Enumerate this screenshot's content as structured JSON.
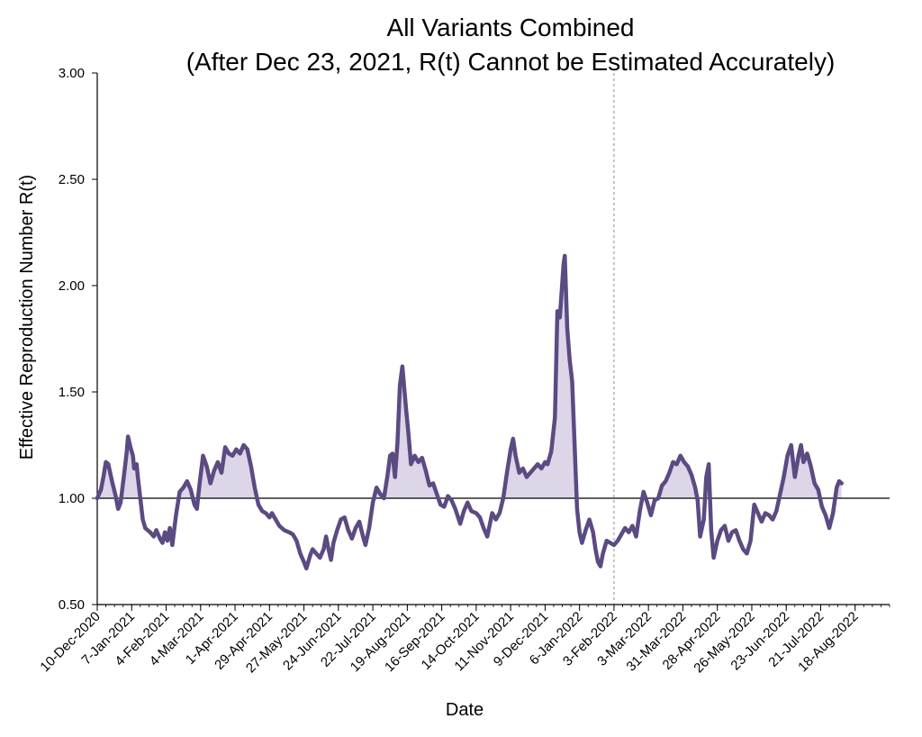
{
  "chart_data": {
    "type": "area",
    "title": "All Variants Combined",
    "subtitle": "(After Dec 23, 2021, R(t) Cannot be Estimated Accurately)",
    "xlabel": "Date",
    "ylabel": "Effective Reproduction Number R(t)",
    "ylim": [
      0.5,
      3.0
    ],
    "y_ticks": [
      "0.50",
      "1.00",
      "1.50",
      "2.00",
      "2.50",
      "3.00"
    ],
    "y_tick_values": [
      0.5,
      1.0,
      1.5,
      2.0,
      2.5,
      3.0
    ],
    "x_ticks": [
      "10-Dec-2020",
      "7-Jan-2021",
      "4-Feb-2021",
      "4-Mar-2021",
      "1-Apr-2021",
      "29-Apr-2021",
      "27-May-2021",
      "24-Jun-2021",
      "22-Jul-2021",
      "19-Aug-2021",
      "16-Sep-2021",
      "14-Oct-2021",
      "11-Nov-2021",
      "9-Dec-2021",
      "6-Jan-2022",
      "3-Feb-2022",
      "3-Mar-2022",
      "31-Mar-2022",
      "28-Apr-2022",
      "26-May-2022",
      "23-Jun-2022",
      "21-Jul-2022",
      "18-Aug-2022"
    ],
    "x_tick_dates": [
      "2020-12-10",
      "2021-01-07",
      "2021-02-04",
      "2021-03-04",
      "2021-04-01",
      "2021-04-29",
      "2021-05-27",
      "2021-06-24",
      "2021-07-22",
      "2021-08-19",
      "2021-09-16",
      "2021-10-14",
      "2021-11-11",
      "2021-12-09",
      "2022-01-06",
      "2022-02-03",
      "2022-03-03",
      "2022-03-31",
      "2022-04-28",
      "2022-05-26",
      "2022-06-23",
      "2022-07-21",
      "2022-08-18"
    ],
    "xlim": [
      "2020-12-10",
      "2022-09-15"
    ],
    "reference_line": 1.0,
    "vertical_marker": "2022-02-03",
    "series": [
      {
        "values": [
          [
            "2020-12-10",
            1.0
          ],
          [
            "2020-12-13",
            1.04
          ],
          [
            "2020-12-15",
            1.1
          ],
          [
            "2020-12-17",
            1.17
          ],
          [
            "2020-12-19",
            1.16
          ],
          [
            "2020-12-22",
            1.08
          ],
          [
            "2020-12-25",
            1.01
          ],
          [
            "2020-12-27",
            0.95
          ],
          [
            "2020-12-29",
            0.98
          ],
          [
            "2021-01-01",
            1.12
          ],
          [
            "2021-01-03",
            1.22
          ],
          [
            "2021-01-04",
            1.29
          ],
          [
            "2021-01-06",
            1.24
          ],
          [
            "2021-01-08",
            1.2
          ],
          [
            "2021-01-09",
            1.14
          ],
          [
            "2021-01-11",
            1.16
          ],
          [
            "2021-01-12",
            1.1
          ],
          [
            "2021-01-14",
            1.0
          ],
          [
            "2021-01-16",
            0.9
          ],
          [
            "2021-01-18",
            0.86
          ],
          [
            "2021-01-20",
            0.85
          ],
          [
            "2021-01-22",
            0.84
          ],
          [
            "2021-01-25",
            0.82
          ],
          [
            "2021-01-27",
            0.85
          ],
          [
            "2021-01-30",
            0.81
          ],
          [
            "2021-02-01",
            0.79
          ],
          [
            "2021-02-03",
            0.84
          ],
          [
            "2021-02-05",
            0.8
          ],
          [
            "2021-02-07",
            0.86
          ],
          [
            "2021-02-09",
            0.78
          ],
          [
            "2021-02-12",
            0.92
          ],
          [
            "2021-02-15",
            1.03
          ],
          [
            "2021-02-18",
            1.05
          ],
          [
            "2021-02-21",
            1.08
          ],
          [
            "2021-02-24",
            1.04
          ],
          [
            "2021-02-27",
            0.97
          ],
          [
            "2021-03-01",
            0.95
          ],
          [
            "2021-03-03",
            1.06
          ],
          [
            "2021-03-06",
            1.2
          ],
          [
            "2021-03-09",
            1.15
          ],
          [
            "2021-03-12",
            1.07
          ],
          [
            "2021-03-15",
            1.13
          ],
          [
            "2021-03-18",
            1.17
          ],
          [
            "2021-03-21",
            1.12
          ],
          [
            "2021-03-24",
            1.24
          ],
          [
            "2021-03-27",
            1.21
          ],
          [
            "2021-03-30",
            1.2
          ],
          [
            "2021-04-02",
            1.23
          ],
          [
            "2021-04-05",
            1.21
          ],
          [
            "2021-04-08",
            1.25
          ],
          [
            "2021-04-11",
            1.23
          ],
          [
            "2021-04-14",
            1.15
          ],
          [
            "2021-04-17",
            1.05
          ],
          [
            "2021-04-20",
            0.97
          ],
          [
            "2021-04-23",
            0.94
          ],
          [
            "2021-04-26",
            0.93
          ],
          [
            "2021-04-29",
            0.91
          ],
          [
            "2021-05-01",
            0.93
          ],
          [
            "2021-05-04",
            0.9
          ],
          [
            "2021-05-07",
            0.87
          ],
          [
            "2021-05-11",
            0.85
          ],
          [
            "2021-05-15",
            0.84
          ],
          [
            "2021-05-18",
            0.83
          ],
          [
            "2021-05-21",
            0.8
          ],
          [
            "2021-05-24",
            0.74
          ],
          [
            "2021-05-27",
            0.7
          ],
          [
            "2021-05-29",
            0.67
          ],
          [
            "2021-06-01",
            0.73
          ],
          [
            "2021-06-03",
            0.76
          ],
          [
            "2021-06-06",
            0.74
          ],
          [
            "2021-06-09",
            0.72
          ],
          [
            "2021-06-12",
            0.76
          ],
          [
            "2021-06-14",
            0.82
          ],
          [
            "2021-06-16",
            0.76
          ],
          [
            "2021-06-18",
            0.71
          ],
          [
            "2021-06-20",
            0.79
          ],
          [
            "2021-06-23",
            0.85
          ],
          [
            "2021-06-26",
            0.9
          ],
          [
            "2021-06-29",
            0.91
          ],
          [
            "2021-07-02",
            0.85
          ],
          [
            "2021-07-05",
            0.81
          ],
          [
            "2021-07-08",
            0.86
          ],
          [
            "2021-07-11",
            0.89
          ],
          [
            "2021-07-14",
            0.82
          ],
          [
            "2021-07-16",
            0.78
          ],
          [
            "2021-07-19",
            0.86
          ],
          [
            "2021-07-22",
            0.98
          ],
          [
            "2021-07-25",
            1.05
          ],
          [
            "2021-07-28",
            1.02
          ],
          [
            "2021-07-31",
            1.0
          ],
          [
            "2021-08-03",
            1.11
          ],
          [
            "2021-08-05",
            1.2
          ],
          [
            "2021-08-07",
            1.21
          ],
          [
            "2021-08-09",
            1.1
          ],
          [
            "2021-08-11",
            1.26
          ],
          [
            "2021-08-13",
            1.53
          ],
          [
            "2021-08-15",
            1.62
          ],
          [
            "2021-08-18",
            1.42
          ],
          [
            "2021-08-20",
            1.3
          ],
          [
            "2021-08-22",
            1.16
          ],
          [
            "2021-08-25",
            1.2
          ],
          [
            "2021-08-28",
            1.17
          ],
          [
            "2021-08-31",
            1.19
          ],
          [
            "2021-09-03",
            1.13
          ],
          [
            "2021-09-06",
            1.06
          ],
          [
            "2021-09-09",
            1.07
          ],
          [
            "2021-09-12",
            1.02
          ],
          [
            "2021-09-15",
            0.97
          ],
          [
            "2021-09-18",
            0.96
          ],
          [
            "2021-09-21",
            1.01
          ],
          [
            "2021-09-24",
            0.99
          ],
          [
            "2021-09-27",
            0.95
          ],
          [
            "2021-10-01",
            0.88
          ],
          [
            "2021-10-04",
            0.94
          ],
          [
            "2021-10-07",
            0.98
          ],
          [
            "2021-10-10",
            0.94
          ],
          [
            "2021-10-14",
            0.93
          ],
          [
            "2021-10-17",
            0.91
          ],
          [
            "2021-10-20",
            0.86
          ],
          [
            "2021-10-23",
            0.82
          ],
          [
            "2021-10-27",
            0.93
          ],
          [
            "2021-10-30",
            0.9
          ],
          [
            "2021-11-02",
            0.93
          ],
          [
            "2021-11-05",
            1.0
          ],
          [
            "2021-11-08",
            1.12
          ],
          [
            "2021-11-11",
            1.23
          ],
          [
            "2021-11-13",
            1.28
          ],
          [
            "2021-11-15",
            1.2
          ],
          [
            "2021-11-18",
            1.12
          ],
          [
            "2021-11-21",
            1.14
          ],
          [
            "2021-11-24",
            1.1
          ],
          [
            "2021-11-27",
            1.12
          ],
          [
            "2021-11-30",
            1.14
          ],
          [
            "2021-12-03",
            1.16
          ],
          [
            "2021-12-06",
            1.14
          ],
          [
            "2021-12-09",
            1.17
          ],
          [
            "2021-12-11",
            1.16
          ],
          [
            "2021-12-14",
            1.22
          ],
          [
            "2021-12-17",
            1.38
          ],
          [
            "2021-12-19",
            1.88
          ],
          [
            "2021-12-21",
            1.85
          ],
          [
            "2021-12-24",
            2.1
          ],
          [
            "2021-12-25",
            2.14
          ],
          [
            "2021-12-27",
            1.8
          ],
          [
            "2021-12-29",
            1.65
          ],
          [
            "2021-12-31",
            1.55
          ],
          [
            "2022-01-02",
            1.25
          ],
          [
            "2022-01-04",
            0.95
          ],
          [
            "2022-01-06",
            0.84
          ],
          [
            "2022-01-08",
            0.79
          ],
          [
            "2022-01-11",
            0.85
          ],
          [
            "2022-01-14",
            0.9
          ],
          [
            "2022-01-17",
            0.84
          ],
          [
            "2022-01-19",
            0.76
          ],
          [
            "2022-01-21",
            0.7
          ],
          [
            "2022-01-23",
            0.68
          ],
          [
            "2022-01-25",
            0.74
          ],
          [
            "2022-01-28",
            0.8
          ],
          [
            "2022-01-31",
            0.79
          ],
          [
            "2022-02-03",
            0.78
          ],
          [
            "2022-02-06",
            0.8
          ],
          [
            "2022-02-09",
            0.83
          ],
          [
            "2022-02-12",
            0.86
          ],
          [
            "2022-02-15",
            0.84
          ],
          [
            "2022-02-18",
            0.87
          ],
          [
            "2022-02-21",
            0.82
          ],
          [
            "2022-02-24",
            0.94
          ],
          [
            "2022-02-27",
            1.03
          ],
          [
            "2022-03-02",
            0.98
          ],
          [
            "2022-03-05",
            0.92
          ],
          [
            "2022-03-08",
            0.99
          ],
          [
            "2022-03-11",
            1.0
          ],
          [
            "2022-03-14",
            1.06
          ],
          [
            "2022-03-17",
            1.08
          ],
          [
            "2022-03-20",
            1.12
          ],
          [
            "2022-03-23",
            1.17
          ],
          [
            "2022-03-26",
            1.16
          ],
          [
            "2022-03-29",
            1.2
          ],
          [
            "2022-04-01",
            1.17
          ],
          [
            "2022-04-04",
            1.15
          ],
          [
            "2022-04-07",
            1.11
          ],
          [
            "2022-04-10",
            1.05
          ],
          [
            "2022-04-12",
            0.99
          ],
          [
            "2022-04-14",
            0.82
          ],
          [
            "2022-04-17",
            0.9
          ],
          [
            "2022-04-19",
            1.1
          ],
          [
            "2022-04-21",
            1.16
          ],
          [
            "2022-04-23",
            0.85
          ],
          [
            "2022-04-25",
            0.72
          ],
          [
            "2022-04-28",
            0.8
          ],
          [
            "2022-05-01",
            0.85
          ],
          [
            "2022-05-04",
            0.87
          ],
          [
            "2022-05-07",
            0.8
          ],
          [
            "2022-05-10",
            0.84
          ],
          [
            "2022-05-13",
            0.85
          ],
          [
            "2022-05-16",
            0.8
          ],
          [
            "2022-05-19",
            0.76
          ],
          [
            "2022-05-22",
            0.74
          ],
          [
            "2022-05-25",
            0.8
          ],
          [
            "2022-05-28",
            0.97
          ],
          [
            "2022-05-31",
            0.93
          ],
          [
            "2022-06-03",
            0.89
          ],
          [
            "2022-06-06",
            0.93
          ],
          [
            "2022-06-09",
            0.92
          ],
          [
            "2022-06-12",
            0.9
          ],
          [
            "2022-06-15",
            0.94
          ],
          [
            "2022-06-18",
            1.02
          ],
          [
            "2022-06-21",
            1.1
          ],
          [
            "2022-06-24",
            1.2
          ],
          [
            "2022-06-27",
            1.25
          ],
          [
            "2022-06-30",
            1.1
          ],
          [
            "2022-07-03",
            1.2
          ],
          [
            "2022-07-05",
            1.25
          ],
          [
            "2022-07-07",
            1.17
          ],
          [
            "2022-07-10",
            1.21
          ],
          [
            "2022-07-13",
            1.15
          ],
          [
            "2022-07-16",
            1.07
          ],
          [
            "2022-07-19",
            1.04
          ],
          [
            "2022-07-22",
            0.96
          ],
          [
            "2022-07-25",
            0.92
          ],
          [
            "2022-07-28",
            0.86
          ],
          [
            "2022-07-31",
            0.93
          ],
          [
            "2022-08-03",
            1.05
          ],
          [
            "2022-08-05",
            1.08
          ],
          [
            "2022-08-07",
            1.07
          ]
        ]
      }
    ],
    "colors": {
      "line": "#5c4a82",
      "fill": "#ddd5e8",
      "axis": "#000000",
      "marker": "#8c8c8c"
    }
  }
}
